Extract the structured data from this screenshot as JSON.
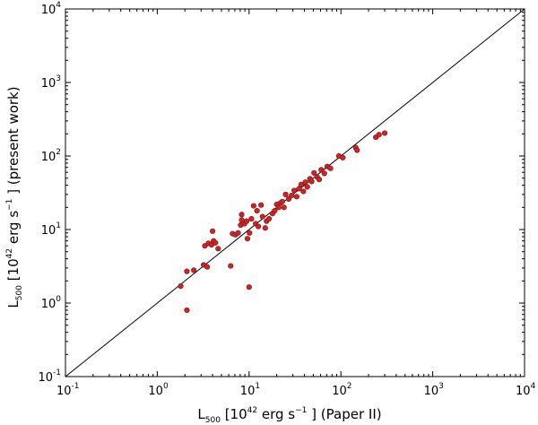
{
  "chart_data": {
    "type": "scatter",
    "xscale": "log",
    "yscale": "log",
    "xlim": [
      0.1,
      10000
    ],
    "ylim": [
      0.1,
      10000
    ],
    "xticks": [
      {
        "value": 0.1,
        "base": "10",
        "exp": "-1"
      },
      {
        "value": 1,
        "base": "10",
        "exp": "0"
      },
      {
        "value": 10,
        "base": "10",
        "exp": "1"
      },
      {
        "value": 100,
        "base": "10",
        "exp": "2"
      },
      {
        "value": 1000,
        "base": "10",
        "exp": "3"
      },
      {
        "value": 10000,
        "base": "10",
        "exp": "4"
      }
    ],
    "yticks": [
      {
        "value": 0.1,
        "base": "10",
        "exp": "-1"
      },
      {
        "value": 1,
        "base": "10",
        "exp": "0"
      },
      {
        "value": 10,
        "base": "10",
        "exp": "1"
      },
      {
        "value": 100,
        "base": "10",
        "exp": "2"
      },
      {
        "value": 1000,
        "base": "10",
        "exp": "3"
      },
      {
        "value": 10000,
        "base": "10",
        "exp": "4"
      }
    ],
    "xlabel": {
      "symbol": "L",
      "sub": "500",
      "unit_pre": " [10",
      "unit_exp": "42",
      "unit_mid": " erg s",
      "unit_exp2": "−1",
      "unit_post": " ]  (Paper II)"
    },
    "ylabel": {
      "symbol": "L",
      "sub": "500",
      "unit_pre": " [10",
      "unit_exp": "42",
      "unit_mid": " erg s",
      "unit_exp2": "−1",
      "unit_post": " ]  (present work)"
    },
    "reference_line": {
      "type": "identity",
      "from": 0.1,
      "to": 10000,
      "color": "#000000"
    },
    "grid": false,
    "marker_color": "#e41a1c",
    "marker_edge": "#333333",
    "points": [
      [
        1.8,
        1.7
      ],
      [
        2.1,
        0.8
      ],
      [
        2.1,
        2.7
      ],
      [
        2.5,
        2.8
      ],
      [
        3.2,
        3.3
      ],
      [
        3.5,
        3.1
      ],
      [
        3.3,
        6.0
      ],
      [
        3.6,
        6.5
      ],
      [
        3.9,
        6.2
      ],
      [
        4.1,
        7.0
      ],
      [
        4.3,
        6.6
      ],
      [
        4.0,
        9.5
      ],
      [
        4.6,
        5.5
      ],
      [
        6.3,
        3.2
      ],
      [
        6.6,
        8.8
      ],
      [
        7.1,
        8.5
      ],
      [
        7.6,
        9.0
      ],
      [
        8.1,
        11.5
      ],
      [
        8.3,
        13.5
      ],
      [
        8.3,
        16.0
      ],
      [
        8.9,
        12.0
      ],
      [
        9.4,
        13.0
      ],
      [
        9.6,
        7.5
      ],
      [
        10.1,
        9.0
      ],
      [
        10.0,
        1.65
      ],
      [
        10.6,
        14.0
      ],
      [
        11.2,
        21.0
      ],
      [
        11.8,
        12.0
      ],
      [
        12.2,
        18.0
      ],
      [
        12.6,
        11.0
      ],
      [
        13.5,
        21.5
      ],
      [
        14.0,
        15.0
      ],
      [
        15.0,
        10.5
      ],
      [
        15.5,
        13.0
      ],
      [
        16.5,
        14.0
      ],
      [
        18.0,
        16.5
      ],
      [
        19.0,
        18.0
      ],
      [
        20.0,
        22.0
      ],
      [
        21.0,
        20.0
      ],
      [
        22.0,
        23.0
      ],
      [
        23.0,
        24.0
      ],
      [
        25.0,
        30.0
      ],
      [
        24.0,
        20.0
      ],
      [
        27.0,
        26.0
      ],
      [
        29.0,
        29.0
      ],
      [
        31.0,
        34.0
      ],
      [
        33.0,
        28.0
      ],
      [
        35.0,
        36.0
      ],
      [
        37.0,
        41.0
      ],
      [
        39.0,
        33.0
      ],
      [
        41.0,
        44.0
      ],
      [
        43.0,
        38.0
      ],
      [
        46.0,
        49.0
      ],
      [
        48.0,
        45.0
      ],
      [
        51.0,
        59.0
      ],
      [
        55.0,
        52.0
      ],
      [
        58.0,
        48.0
      ],
      [
        61.0,
        65.0
      ],
      [
        66.0,
        58.0
      ],
      [
        71.0,
        72.0
      ],
      [
        77.0,
        68.0
      ],
      [
        95.0,
        100.0
      ],
      [
        105.0,
        95.0
      ],
      [
        145.0,
        130.0
      ],
      [
        150.0,
        120.0
      ],
      [
        240.0,
        180.0
      ],
      [
        260.0,
        195.0
      ],
      [
        300.0,
        205.0
      ]
    ]
  }
}
